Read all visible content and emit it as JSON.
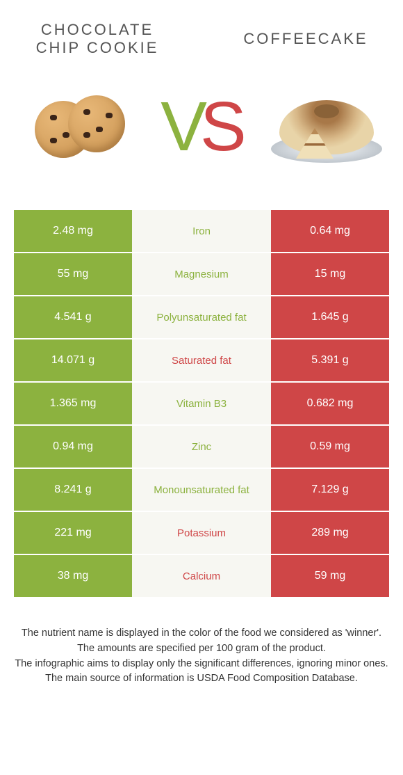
{
  "colors": {
    "left": "#8cb23f",
    "right": "#cf4647",
    "mid_bg": "#f7f7f2",
    "text_white": "#ffffff"
  },
  "header": {
    "left_title": "Chocolate chip cookie",
    "right_title": "Coffeecake"
  },
  "vs": {
    "v": "V",
    "s": "S"
  },
  "rows": [
    {
      "left": "2.48 mg",
      "label": "Iron",
      "right": "0.64 mg",
      "winner": "left"
    },
    {
      "left": "55 mg",
      "label": "Magnesium",
      "right": "15 mg",
      "winner": "left"
    },
    {
      "left": "4.541 g",
      "label": "Polyunsaturated fat",
      "right": "1.645 g",
      "winner": "left"
    },
    {
      "left": "14.071 g",
      "label": "Saturated fat",
      "right": "5.391 g",
      "winner": "right"
    },
    {
      "left": "1.365 mg",
      "label": "Vitamin B3",
      "right": "0.682 mg",
      "winner": "left"
    },
    {
      "left": "0.94 mg",
      "label": "Zinc",
      "right": "0.59 mg",
      "winner": "left"
    },
    {
      "left": "8.241 g",
      "label": "Monounsaturated fat",
      "right": "7.129 g",
      "winner": "left"
    },
    {
      "left": "221 mg",
      "label": "Potassium",
      "right": "289 mg",
      "winner": "right"
    },
    {
      "left": "38 mg",
      "label": "Calcium",
      "right": "59 mg",
      "winner": "right"
    }
  ],
  "footer": {
    "line1": "The nutrient name is displayed in the color of the food we considered as 'winner'.",
    "line2": "The amounts are specified per 100 gram of the product.",
    "line3": "The infographic aims to display only the significant differences, ignoring minor ones.",
    "line4": "The main source of information is USDA Food Composition Database."
  }
}
